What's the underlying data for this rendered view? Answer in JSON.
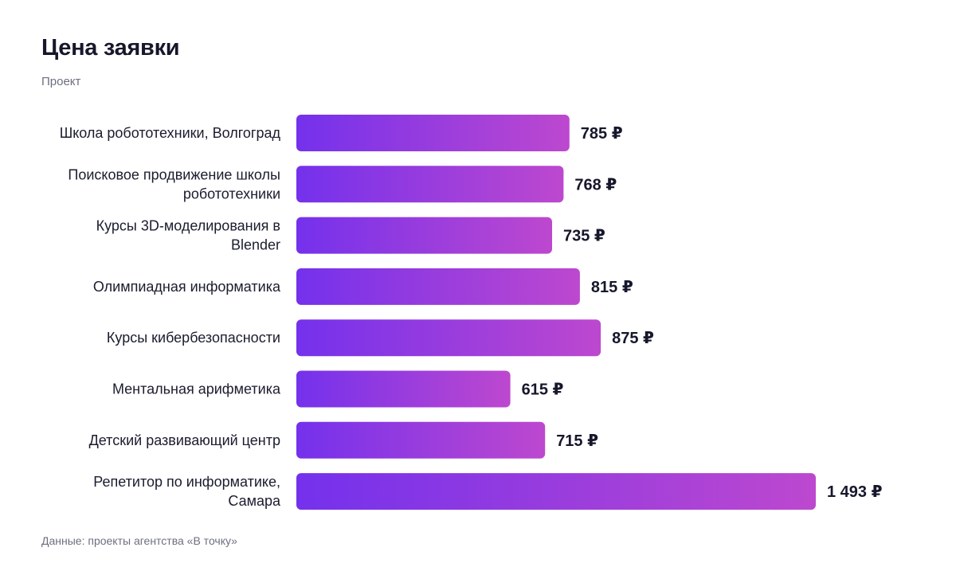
{
  "title": "Цена заявки",
  "subtitle": "Проект",
  "footer": "Данные: проекты агентства «В точку»",
  "currency": "₽",
  "colors": {
    "gradient_start": "#7431ec",
    "gradient_end": "#bd48cf",
    "text": "#16172b",
    "muted": "#6e6f80"
  },
  "chart_data": {
    "type": "bar",
    "orientation": "horizontal",
    "title": "Цена заявки",
    "subtitle": "Проект",
    "categories": [
      "Школа робототехники, Волгоград",
      "Поисковое продвижение школы робототехники",
      "Курсы 3D-моделирования в Blender",
      "Олимпиадная информатика",
      "Курсы кибербезопасности",
      "Ментальная арифметика",
      "Детский развивающий центр",
      "Репетитор по информатике, Самара"
    ],
    "category_lines": [
      [
        "Школа робототехники, Волгоград"
      ],
      [
        "Поисковое продвижение школы",
        "робототехники"
      ],
      [
        "Курсы 3D-моделирования в",
        "Blender"
      ],
      [
        "Олимпиадная информатика"
      ],
      [
        "Курсы кибербезопасности"
      ],
      [
        "Ментальная арифметика"
      ],
      [
        "Детский развивающий центр"
      ],
      [
        "Репетитор по информатике,",
        "Самара"
      ]
    ],
    "values": [
      785,
      768,
      735,
      815,
      875,
      615,
      715,
      1493
    ],
    "value_labels": [
      "785",
      "768",
      "735",
      "815",
      "875",
      "615",
      "715",
      "1 493"
    ],
    "xlim": [
      0,
      1493
    ],
    "grid": false,
    "legend": "none"
  }
}
